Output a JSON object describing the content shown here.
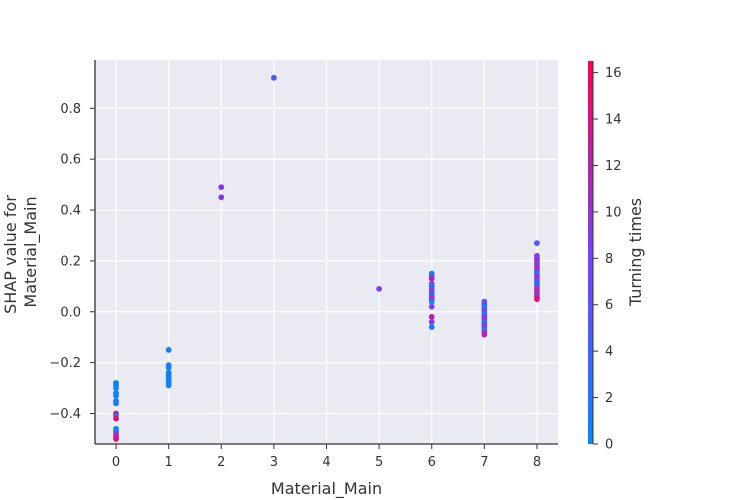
{
  "chart_data": {
    "type": "scatter",
    "title": "",
    "xlabel": "Material_Main",
    "ylabel_lines": [
      "SHAP value for",
      "Material_Main"
    ],
    "xlim": [
      -0.4,
      8.4
    ],
    "ylim": [
      -0.52,
      0.99
    ],
    "xticks": [
      0,
      1,
      2,
      3,
      4,
      5,
      6,
      7,
      8
    ],
    "yticks": [
      -0.4,
      -0.2,
      0.0,
      0.2,
      0.4,
      0.6,
      0.8
    ],
    "ytick_labels": [
      "−0.4",
      "−0.2",
      "0.0",
      "0.2",
      "0.4",
      "0.6",
      "0.8"
    ],
    "grid": true,
    "background": "#eaeaf2",
    "colorbar": {
      "label": "Turning times",
      "min": 0,
      "max": 16.5,
      "ticks": [
        0,
        2,
        4,
        6,
        8,
        10,
        12,
        14,
        16
      ],
      "colors": [
        "#008afb",
        "#7c3ff5",
        "#ff0052"
      ]
    },
    "points": [
      {
        "x": 0,
        "y": -0.28,
        "c": 1
      },
      {
        "x": 0,
        "y": -0.29,
        "c": 1
      },
      {
        "x": 0,
        "y": -0.3,
        "c": 1
      },
      {
        "x": 0,
        "y": -0.32,
        "c": 1
      },
      {
        "x": 0,
        "y": -0.33,
        "c": 1
      },
      {
        "x": 0,
        "y": -0.35,
        "c": 1
      },
      {
        "x": 0,
        "y": -0.36,
        "c": 2
      },
      {
        "x": 0,
        "y": -0.4,
        "c": 14
      },
      {
        "x": 0,
        "y": -0.41,
        "c": 1
      },
      {
        "x": 0,
        "y": -0.42,
        "c": 15
      },
      {
        "x": 0,
        "y": -0.46,
        "c": 1
      },
      {
        "x": 0,
        "y": -0.47,
        "c": 1
      },
      {
        "x": 0,
        "y": -0.48,
        "c": 10
      },
      {
        "x": 0,
        "y": -0.49,
        "c": 12
      },
      {
        "x": 0,
        "y": -0.5,
        "c": 14
      },
      {
        "x": 1,
        "y": -0.15,
        "c": 1
      },
      {
        "x": 1,
        "y": -0.21,
        "c": 1
      },
      {
        "x": 1,
        "y": -0.22,
        "c": 1
      },
      {
        "x": 1,
        "y": -0.24,
        "c": 1
      },
      {
        "x": 1,
        "y": -0.25,
        "c": 1
      },
      {
        "x": 1,
        "y": -0.26,
        "c": 1
      },
      {
        "x": 1,
        "y": -0.27,
        "c": 1
      },
      {
        "x": 1,
        "y": -0.28,
        "c": 1
      },
      {
        "x": 1,
        "y": -0.29,
        "c": 1
      },
      {
        "x": 2,
        "y": 0.49,
        "c": 9
      },
      {
        "x": 2,
        "y": 0.45,
        "c": 9
      },
      {
        "x": 3,
        "y": 0.92,
        "c": 6
      },
      {
        "x": 5,
        "y": 0.09,
        "c": 8
      },
      {
        "x": 6,
        "y": 0.15,
        "c": 1
      },
      {
        "x": 6,
        "y": 0.14,
        "c": 3
      },
      {
        "x": 6,
        "y": 0.13,
        "c": 12
      },
      {
        "x": 6,
        "y": 0.11,
        "c": 9
      },
      {
        "x": 6,
        "y": 0.1,
        "c": 1
      },
      {
        "x": 6,
        "y": 0.09,
        "c": 7
      },
      {
        "x": 6,
        "y": 0.08,
        "c": 10
      },
      {
        "x": 6,
        "y": 0.07,
        "c": 1
      },
      {
        "x": 6,
        "y": 0.06,
        "c": 8
      },
      {
        "x": 6,
        "y": 0.05,
        "c": 11
      },
      {
        "x": 6,
        "y": 0.04,
        "c": 1
      },
      {
        "x": 6,
        "y": 0.02,
        "c": 8
      },
      {
        "x": 6,
        "y": -0.02,
        "c": 12
      },
      {
        "x": 6,
        "y": -0.04,
        "c": 9
      },
      {
        "x": 6,
        "y": -0.06,
        "c": 1
      },
      {
        "x": 7,
        "y": 0.04,
        "c": 5
      },
      {
        "x": 7,
        "y": 0.03,
        "c": 7
      },
      {
        "x": 7,
        "y": 0.02,
        "c": 1
      },
      {
        "x": 7,
        "y": 0.01,
        "c": 6
      },
      {
        "x": 7,
        "y": 0.0,
        "c": 9
      },
      {
        "x": 7,
        "y": -0.01,
        "c": 1
      },
      {
        "x": 7,
        "y": -0.02,
        "c": 8
      },
      {
        "x": 7,
        "y": -0.03,
        "c": 11
      },
      {
        "x": 7,
        "y": -0.04,
        "c": 1
      },
      {
        "x": 7,
        "y": -0.05,
        "c": 7
      },
      {
        "x": 7,
        "y": -0.06,
        "c": 10
      },
      {
        "x": 7,
        "y": -0.07,
        "c": 1
      },
      {
        "x": 7,
        "y": -0.08,
        "c": 9
      },
      {
        "x": 7,
        "y": -0.09,
        "c": 12
      },
      {
        "x": 8,
        "y": 0.27,
        "c": 6
      },
      {
        "x": 8,
        "y": 0.22,
        "c": 8
      },
      {
        "x": 8,
        "y": 0.21,
        "c": 9
      },
      {
        "x": 8,
        "y": 0.2,
        "c": 11
      },
      {
        "x": 8,
        "y": 0.19,
        "c": 7
      },
      {
        "x": 8,
        "y": 0.18,
        "c": 10
      },
      {
        "x": 8,
        "y": 0.17,
        "c": 12
      },
      {
        "x": 8,
        "y": 0.16,
        "c": 8
      },
      {
        "x": 8,
        "y": 0.15,
        "c": 1
      },
      {
        "x": 8,
        "y": 0.14,
        "c": 9
      },
      {
        "x": 8,
        "y": 0.13,
        "c": 11
      },
      {
        "x": 8,
        "y": 0.12,
        "c": 6
      },
      {
        "x": 8,
        "y": 0.11,
        "c": 1
      },
      {
        "x": 8,
        "y": 0.1,
        "c": 7
      },
      {
        "x": 8,
        "y": 0.09,
        "c": 10
      },
      {
        "x": 8,
        "y": 0.08,
        "c": 13
      },
      {
        "x": 8,
        "y": 0.07,
        "c": 8
      },
      {
        "x": 8,
        "y": 0.06,
        "c": 11
      },
      {
        "x": 8,
        "y": 0.05,
        "c": 15
      }
    ]
  }
}
